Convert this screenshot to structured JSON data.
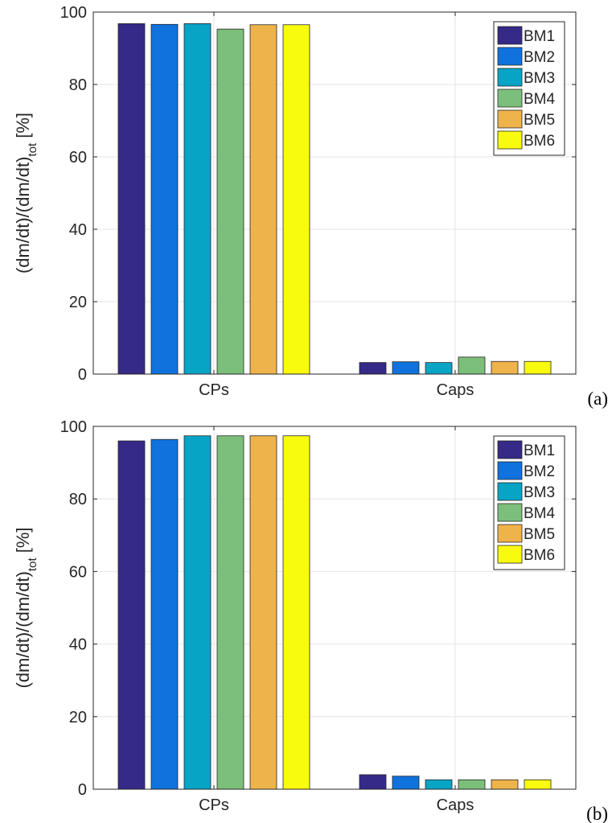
{
  "chart_data": [
    {
      "type": "bar",
      "panel_label": "(a)",
      "categories": [
        "CPs",
        "Caps"
      ],
      "series": [
        {
          "name": "BM1",
          "color": "#352a87",
          "values": [
            96.8,
            3.2
          ]
        },
        {
          "name": "BM2",
          "color": "#0f72dd",
          "values": [
            96.6,
            3.4
          ]
        },
        {
          "name": "BM3",
          "color": "#08a4c6",
          "values": [
            96.8,
            3.2
          ]
        },
        {
          "name": "BM4",
          "color": "#7cbf7b",
          "values": [
            95.3,
            4.7
          ]
        },
        {
          "name": "BM5",
          "color": "#efb34b",
          "values": [
            96.5,
            3.5
          ]
        },
        {
          "name": "BM6",
          "color": "#f9fb0e",
          "values": [
            96.5,
            3.5
          ]
        }
      ],
      "ylabel": "(dm/dt)/(dm/dt)",
      "ylabel_subscript": "tot",
      "ylabel_suffix": " [%]",
      "ylim": [
        0,
        100
      ],
      "yticks": [
        "0",
        "20",
        "40",
        "60",
        "80",
        "100"
      ],
      "grid": true,
      "legend_position": "top-right"
    },
    {
      "type": "bar",
      "panel_label": "(b)",
      "categories": [
        "CPs",
        "Caps"
      ],
      "series": [
        {
          "name": "BM1",
          "color": "#352a87",
          "values": [
            96.0,
            4.0
          ]
        },
        {
          "name": "BM2",
          "color": "#0f72dd",
          "values": [
            96.4,
            3.6
          ]
        },
        {
          "name": "BM3",
          "color": "#08a4c6",
          "values": [
            97.4,
            2.6
          ]
        },
        {
          "name": "BM4",
          "color": "#7cbf7b",
          "values": [
            97.4,
            2.6
          ]
        },
        {
          "name": "BM5",
          "color": "#efb34b",
          "values": [
            97.4,
            2.6
          ]
        },
        {
          "name": "BM6",
          "color": "#f9fb0e",
          "values": [
            97.4,
            2.6
          ]
        }
      ],
      "ylabel": "(dm/dt)/(dm/dt)",
      "ylabel_subscript": "tot",
      "ylabel_suffix": " [%]",
      "ylim": [
        0,
        100
      ],
      "yticks": [
        "0",
        "20",
        "40",
        "60",
        "80",
        "100"
      ],
      "grid": true,
      "legend_position": "top-right"
    }
  ]
}
